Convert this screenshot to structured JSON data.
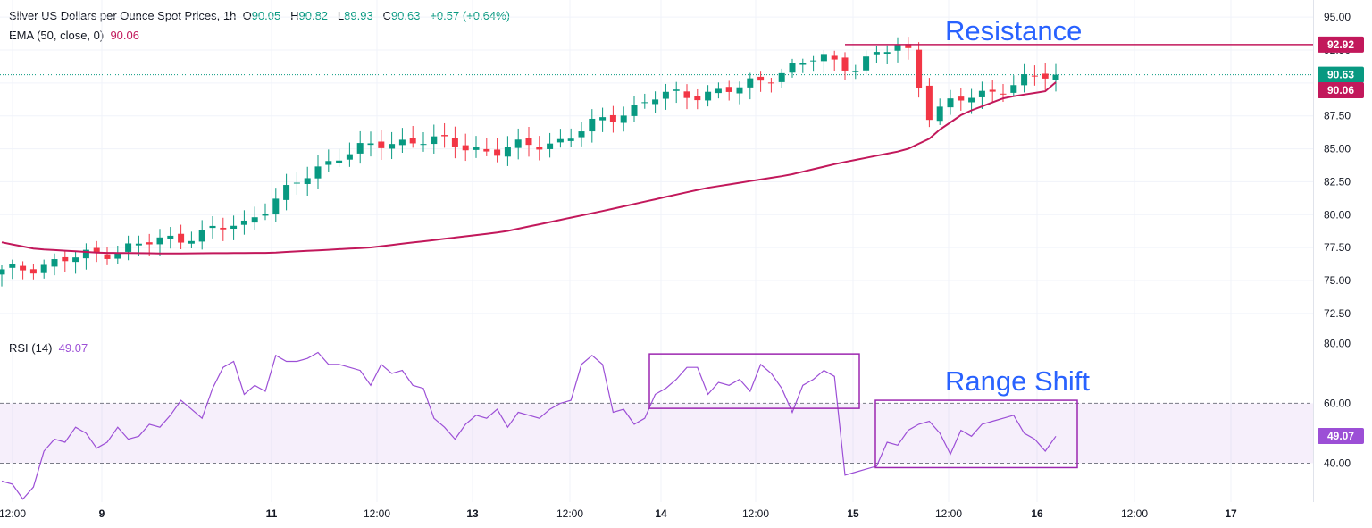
{
  "header": {
    "symbol": "Silver US Dollars per Ounce Spot Prices, 1h",
    "o_label": "O",
    "o_value": "90.05",
    "h_label": "H",
    "h_value": "90.82",
    "l_label": "L",
    "l_value": "89.93",
    "c_label": "C",
    "c_value": "90.63",
    "change": "+0.57 (+0.64%)",
    "ema_label": "EMA (50, close, 0)",
    "ema_value": "90.06",
    "rsi_label": "RSI (14)",
    "rsi_value": "49.07"
  },
  "tags": {
    "resistance": "92.92",
    "last": "90.63",
    "ema": "90.06",
    "rsi": "49.07"
  },
  "colors": {
    "up": "#089981",
    "down": "#f23645",
    "ema": "#c2185b",
    "rsi": "#9c4fd6",
    "annotation": "#2962ff",
    "box": "#9c27b0",
    "resistance": "#c2185b"
  },
  "chart_data": [
    {
      "type": "candlestick",
      "title": "Silver US Dollars per Ounce Spot Prices, 1h",
      "ylim": [
        71.2,
        96.3
      ],
      "y_ticks": [
        "72.50",
        "75.00",
        "77.50",
        "80.00",
        "82.50",
        "85.00",
        "87.50",
        "90.00",
        "92.50",
        "95.00"
      ],
      "x_ticks": [
        "12:00",
        "9",
        "11",
        "12:00",
        "13",
        "12:00",
        "14",
        "12:00",
        "15",
        "12:00",
        "16",
        "12:00",
        "17"
      ],
      "anchors_x": [
        0,
        150,
        151,
        201,
        248,
        294,
        333,
        390,
        440,
        464,
        488,
        510,
        540,
        554,
        580,
        630
      ],
      "anchors_close": [
        75.6,
        79.4,
        80.0,
        84.6,
        85.8,
        84.8,
        85.6,
        88.9,
        89.5,
        90.8,
        91.9,
        91.3,
        93.1,
        87.7,
        89.0,
        90.8
      ],
      "ema_anchors_x": [
        0,
        20,
        60,
        100,
        160,
        220,
        300,
        360,
        420,
        470,
        500,
        520,
        540,
        555,
        560,
        575,
        600,
        625
      ],
      "ema_anchors_y": [
        77.9,
        77.4,
        77.1,
        77.05,
        77.1,
        77.5,
        78.7,
        80.3,
        82.0,
        83.0,
        83.9,
        84.4,
        84.9,
        85.8,
        86.4,
        87.7,
        88.9,
        89.4
      ],
      "ema_final": 90.06,
      "resistance": 92.92,
      "last_close": 90.63,
      "annotation": "Resistance"
    },
    {
      "type": "line",
      "title": "RSI (14)",
      "ylim": [
        27,
        84
      ],
      "y_ticks": [
        "40.00",
        "60.00",
        "80.00"
      ],
      "band": [
        40,
        60
      ],
      "values": [
        34,
        33,
        28,
        32,
        44,
        48,
        47,
        52,
        50,
        45,
        47,
        52,
        48,
        49,
        53,
        52,
        56,
        61,
        58,
        55,
        65,
        72,
        74,
        63,
        66,
        64,
        76,
        74,
        74,
        75,
        77,
        73,
        73,
        72,
        71,
        66,
        73,
        70,
        71,
        66,
        65,
        55,
        52,
        48,
        53,
        56,
        55,
        58,
        52,
        57,
        56,
        55,
        58,
        60,
        61,
        73,
        76,
        73,
        57,
        58,
        53,
        55,
        63,
        65,
        68,
        72,
        72,
        63,
        67,
        66,
        68,
        64,
        73,
        70,
        65,
        57,
        66,
        68,
        71,
        69,
        36,
        37,
        38,
        39,
        47,
        46,
        51,
        53,
        54,
        50,
        43,
        51,
        49,
        53,
        54,
        55,
        56,
        50,
        48,
        44,
        49
      ],
      "last": 49.07,
      "annotation": "Range Shift"
    }
  ]
}
